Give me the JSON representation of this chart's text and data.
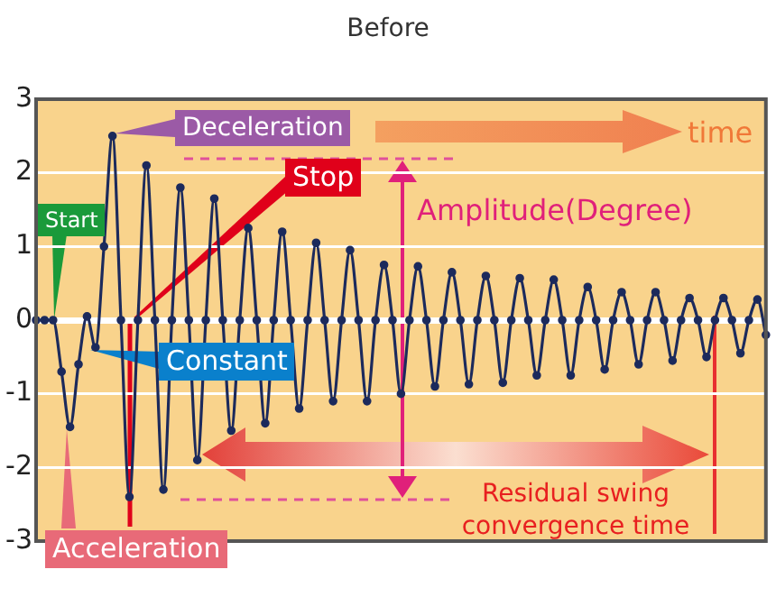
{
  "chart_data": {
    "type": "line",
    "title": "Before",
    "categories": [
      null,
      null,
      null,
      null,
      null,
      null,
      null,
      null,
      null,
      null,
      null,
      null,
      null,
      null,
      null,
      null,
      null,
      null,
      null,
      null,
      null,
      null,
      null,
      null,
      null,
      null,
      null,
      null,
      null,
      null,
      null,
      null,
      null,
      null,
      null,
      null,
      null,
      null,
      null,
      null,
      null,
      null,
      null,
      null,
      null,
      null,
      null,
      null,
      null,
      null,
      null,
      null,
      null,
      null,
      null,
      null,
      null,
      null,
      null,
      null,
      null,
      null,
      null,
      null,
      null,
      null,
      null,
      null,
      null,
      null,
      null,
      null,
      null,
      null,
      null,
      null,
      null,
      null,
      null,
      null,
      null,
      null,
      null,
      null,
      null,
      null,
      null
    ],
    "series": [
      {
        "color": "#1c2a5c",
        "values": [
          0,
          0,
          0,
          -0.7,
          -1.45,
          -0.6,
          0.05,
          -0.37,
          1.0,
          2.5,
          0,
          -2.4,
          0,
          2.1,
          0,
          -2.3,
          0,
          1.8,
          0,
          -1.9,
          0,
          1.65,
          0,
          -1.5,
          0,
          1.25,
          0,
          -1.4,
          0,
          1.2,
          0,
          -1.2,
          0,
          1.05,
          0,
          -1.1,
          0,
          0.95,
          0,
          -1.1,
          0,
          0.75,
          0,
          -1.0,
          0,
          0.73,
          0,
          -0.9,
          0,
          0.65,
          0,
          -0.87,
          0,
          0.6,
          0,
          -0.85,
          0,
          0.57,
          0,
          -0.75,
          0,
          0.55,
          0,
          -0.75,
          0,
          0.45,
          0,
          -0.67,
          0,
          0.38,
          0,
          -0.6,
          0,
          0.38,
          0,
          -0.55,
          0,
          0.3,
          0,
          -0.5,
          0,
          0.3,
          0,
          -0.45,
          0,
          0.28,
          -0.2
        ]
      }
    ],
    "ylim": [
      -3,
      3
    ],
    "yticks": [
      -3,
      -2,
      -1,
      0,
      1,
      2,
      3
    ],
    "grid": "y",
    "marker": "circle",
    "tick_labels": "y",
    "annotations": [
      "Deceleration",
      "time",
      "Stop",
      "Amplitude(Degree)",
      "Start",
      "Constant",
      "Residual swing convergence time",
      "Acceleration"
    ]
  }
}
